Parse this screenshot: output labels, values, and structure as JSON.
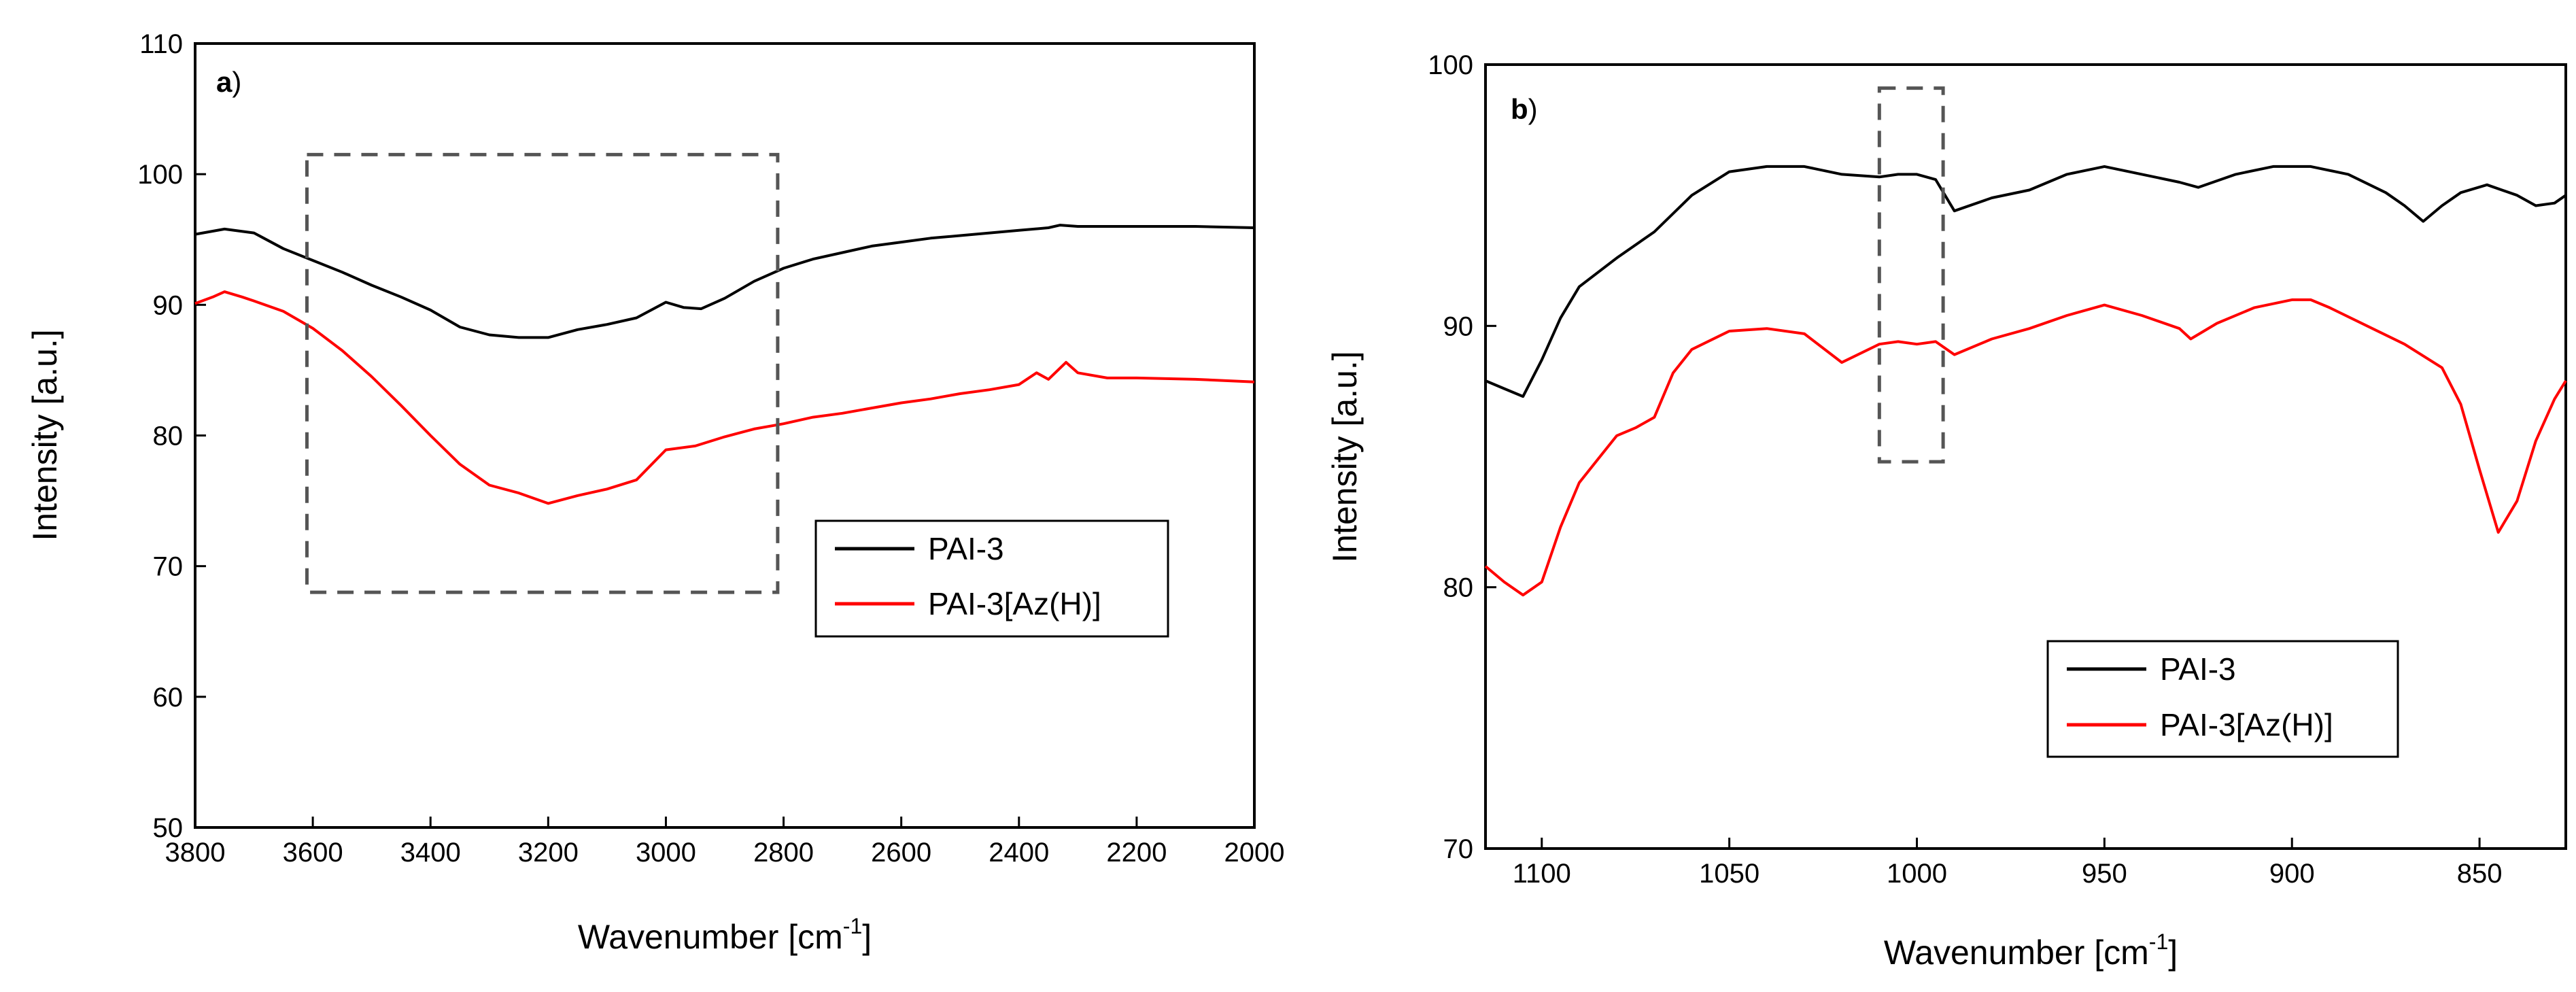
{
  "chart_data": [
    {
      "panel_label": "a",
      "panel_paren": ")",
      "type": "line",
      "xlabel": "Wavenumber [cm",
      "xlabel_sup": "-1",
      "xlabel_end": "]",
      "ylabel": "Intensity [a.u.]",
      "xlim": [
        3800,
        2000
      ],
      "ylim": [
        50,
        110
      ],
      "xticks": [
        3800,
        3600,
        3400,
        3200,
        3000,
        2800,
        2600,
        2400,
        2200,
        2000
      ],
      "yticks": [
        50,
        60,
        70,
        80,
        90,
        100,
        110
      ],
      "legend_position": "center-right",
      "highlight_region": {
        "x": [
          3610,
          2810
        ],
        "y": [
          68,
          101.5
        ]
      },
      "series": [
        {
          "name": "PAI-3",
          "color": "#000000",
          "points": [
            [
              3800,
              95.4
            ],
            [
              3750,
              95.8
            ],
            [
              3700,
              95.5
            ],
            [
              3650,
              94.3
            ],
            [
              3600,
              93.4
            ],
            [
              3550,
              92.5
            ],
            [
              3500,
              91.5
            ],
            [
              3450,
              90.6
            ],
            [
              3400,
              89.6
            ],
            [
              3350,
              88.3
            ],
            [
              3300,
              87.7
            ],
            [
              3250,
              87.5
            ],
            [
              3200,
              87.5
            ],
            [
              3150,
              88.1
            ],
            [
              3100,
              88.5
            ],
            [
              3050,
              89.0
            ],
            [
              3000,
              90.2
            ],
            [
              2970,
              89.8
            ],
            [
              2940,
              89.7
            ],
            [
              2900,
              90.5
            ],
            [
              2850,
              91.8
            ],
            [
              2800,
              92.8
            ],
            [
              2750,
              93.5
            ],
            [
              2700,
              94.0
            ],
            [
              2650,
              94.5
            ],
            [
              2600,
              94.8
            ],
            [
              2550,
              95.1
            ],
            [
              2500,
              95.3
            ],
            [
              2450,
              95.5
            ],
            [
              2400,
              95.7
            ],
            [
              2350,
              95.9
            ],
            [
              2330,
              96.1
            ],
            [
              2300,
              96.0
            ],
            [
              2250,
              96.0
            ],
            [
              2200,
              96.0
            ],
            [
              2100,
              96.0
            ],
            [
              2000,
              95.9
            ]
          ]
        },
        {
          "name": "PAI-3[Az(H)]",
          "color": "#ff0000",
          "points": [
            [
              3800,
              90.1
            ],
            [
              3770,
              90.6
            ],
            [
              3750,
              91.0
            ],
            [
              3720,
              90.6
            ],
            [
              3700,
              90.3
            ],
            [
              3650,
              89.5
            ],
            [
              3600,
              88.2
            ],
            [
              3550,
              86.5
            ],
            [
              3500,
              84.5
            ],
            [
              3450,
              82.3
            ],
            [
              3400,
              80.0
            ],
            [
              3350,
              77.8
            ],
            [
              3300,
              76.2
            ],
            [
              3250,
              75.6
            ],
            [
              3200,
              74.8
            ],
            [
              3150,
              75.4
            ],
            [
              3100,
              75.9
            ],
            [
              3050,
              76.6
            ],
            [
              3000,
              78.9
            ],
            [
              2950,
              79.2
            ],
            [
              2900,
              79.9
            ],
            [
              2850,
              80.5
            ],
            [
              2800,
              80.9
            ],
            [
              2750,
              81.4
            ],
            [
              2700,
              81.7
            ],
            [
              2650,
              82.1
            ],
            [
              2600,
              82.5
            ],
            [
              2550,
              82.8
            ],
            [
              2500,
              83.2
            ],
            [
              2450,
              83.5
            ],
            [
              2400,
              83.9
            ],
            [
              2370,
              84.8
            ],
            [
              2350,
              84.3
            ],
            [
              2320,
              85.6
            ],
            [
              2300,
              84.8
            ],
            [
              2250,
              84.4
            ],
            [
              2200,
              84.4
            ],
            [
              2100,
              84.3
            ],
            [
              2000,
              84.1
            ]
          ]
        }
      ]
    },
    {
      "panel_label": "b",
      "panel_paren": ")",
      "type": "line",
      "xlabel": "Wavenumber [cm",
      "xlabel_sup": "-1",
      "xlabel_end": "]",
      "ylabel": "Intensity [a.u.]",
      "xlim": [
        1115,
        827
      ],
      "ylim": [
        70,
        100
      ],
      "xticks": [
        1100,
        1050,
        1000,
        950,
        900,
        850
      ],
      "yticks": [
        70,
        80,
        90,
        100
      ],
      "legend_position": "bottom-right",
      "highlight_region": {
        "x": [
          1010,
          993
        ],
        "y": [
          84.8,
          99.1
        ]
      },
      "series": [
        {
          "name": "PAI-3",
          "color": "#000000",
          "points": [
            [
              1115,
              87.9
            ],
            [
              1110,
              87.6
            ],
            [
              1105,
              87.3
            ],
            [
              1100,
              88.7
            ],
            [
              1095,
              90.3
            ],
            [
              1090,
              91.5
            ],
            [
              1080,
              92.6
            ],
            [
              1070,
              93.6
            ],
            [
              1060,
              95.0
            ],
            [
              1050,
              95.9
            ],
            [
              1040,
              96.1
            ],
            [
              1030,
              96.1
            ],
            [
              1020,
              95.8
            ],
            [
              1010,
              95.7
            ],
            [
              1005,
              95.8
            ],
            [
              1000,
              95.8
            ],
            [
              995,
              95.6
            ],
            [
              990,
              94.4
            ],
            [
              980,
              94.9
            ],
            [
              970,
              95.2
            ],
            [
              960,
              95.8
            ],
            [
              950,
              96.1
            ],
            [
              940,
              95.8
            ],
            [
              930,
              95.5
            ],
            [
              925,
              95.3
            ],
            [
              915,
              95.8
            ],
            [
              905,
              96.1
            ],
            [
              895,
              96.1
            ],
            [
              885,
              95.8
            ],
            [
              875,
              95.1
            ],
            [
              870,
              94.6
            ],
            [
              865,
              94.0
            ],
            [
              860,
              94.6
            ],
            [
              855,
              95.1
            ],
            [
              848,
              95.4
            ],
            [
              840,
              95.0
            ],
            [
              835,
              94.6
            ],
            [
              830,
              94.7
            ],
            [
              827,
              95.0
            ]
          ]
        },
        {
          "name": "PAI-3[Az(H)]",
          "color": "#ff0000",
          "points": [
            [
              1115,
              80.8
            ],
            [
              1110,
              80.2
            ],
            [
              1105,
              79.7
            ],
            [
              1100,
              80.2
            ],
            [
              1095,
              82.3
            ],
            [
              1090,
              84.0
            ],
            [
              1085,
              84.9
            ],
            [
              1080,
              85.8
            ],
            [
              1075,
              86.1
            ],
            [
              1070,
              86.5
            ],
            [
              1065,
              88.2
            ],
            [
              1060,
              89.1
            ],
            [
              1050,
              89.8
            ],
            [
              1040,
              89.9
            ],
            [
              1030,
              89.7
            ],
            [
              1020,
              88.6
            ],
            [
              1010,
              89.3
            ],
            [
              1005,
              89.4
            ],
            [
              1000,
              89.3
            ],
            [
              995,
              89.4
            ],
            [
              990,
              88.9
            ],
            [
              980,
              89.5
            ],
            [
              970,
              89.9
            ],
            [
              960,
              90.4
            ],
            [
              950,
              90.8
            ],
            [
              940,
              90.4
            ],
            [
              930,
              89.9
            ],
            [
              927,
              89.5
            ],
            [
              920,
              90.1
            ],
            [
              910,
              90.7
            ],
            [
              900,
              91.0
            ],
            [
              895,
              91.0
            ],
            [
              890,
              90.7
            ],
            [
              880,
              90.0
            ],
            [
              870,
              89.3
            ],
            [
              860,
              88.4
            ],
            [
              855,
              87.0
            ],
            [
              850,
              84.5
            ],
            [
              845,
              82.1
            ],
            [
              840,
              83.3
            ],
            [
              835,
              85.6
            ],
            [
              830,
              87.2
            ],
            [
              827,
              87.9
            ]
          ]
        }
      ]
    }
  ]
}
